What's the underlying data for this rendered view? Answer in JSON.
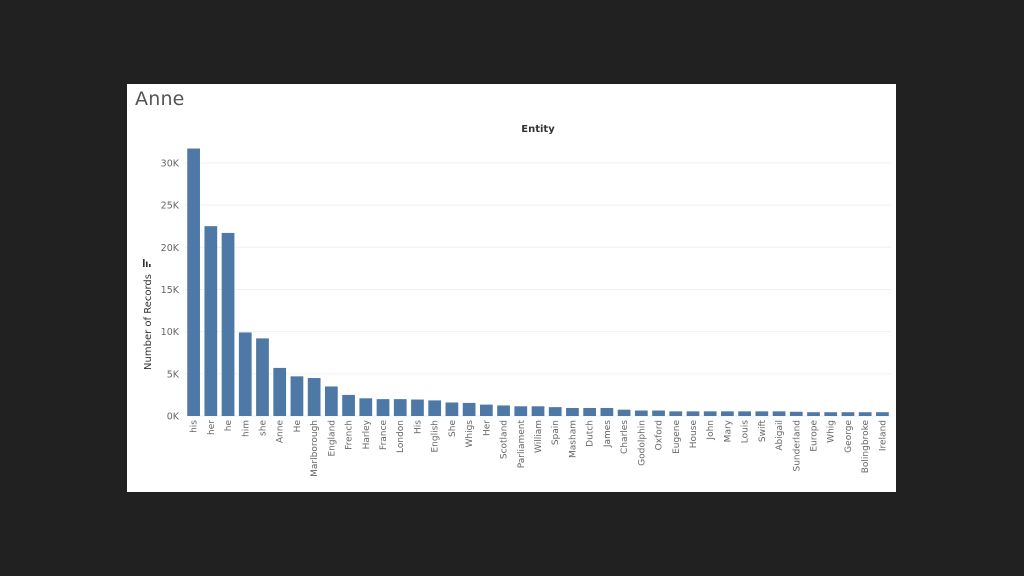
{
  "sheet": {
    "title": "Anne"
  },
  "chart_data": {
    "type": "bar",
    "title": "Anne",
    "column_header": "Entity",
    "xlabel": "",
    "ylabel": "Number of Records",
    "ylim": [
      0,
      32000
    ],
    "yticks": [
      0,
      5000,
      10000,
      15000,
      20000,
      25000,
      30000
    ],
    "ytick_labels": [
      "0K",
      "5K",
      "10K",
      "15K",
      "20K",
      "25K",
      "30K"
    ],
    "grid": true,
    "bar_color": "#4e79a7",
    "sort_indicator_icon": "sort-descending-icon",
    "categories": [
      "his",
      "her",
      "he",
      "him",
      "she",
      "Anne",
      "He",
      "Marlborough",
      "England",
      "French",
      "Harley",
      "France",
      "London",
      "His",
      "English",
      "She",
      "Whigs",
      "Her",
      "Scotland",
      "Parliament",
      "William",
      "Spain",
      "Masham",
      "Dutch",
      "James",
      "Charles",
      "Godolphin",
      "Oxford",
      "Eugene",
      "House",
      "John",
      "Mary",
      "Louis",
      "Swift",
      "Abigail",
      "Sunderland",
      "Europe",
      "Whig",
      "George",
      "Bolingbroke",
      "Ireland"
    ],
    "values": [
      31700,
      22500,
      21700,
      9900,
      9200,
      5700,
      4700,
      4500,
      3500,
      2500,
      2100,
      2000,
      2000,
      1950,
      1850,
      1600,
      1550,
      1350,
      1250,
      1150,
      1150,
      1050,
      950,
      950,
      950,
      750,
      650,
      650,
      550,
      550,
      550,
      550,
      550,
      550,
      550,
      500,
      450,
      450,
      450,
      450,
      450
    ]
  }
}
